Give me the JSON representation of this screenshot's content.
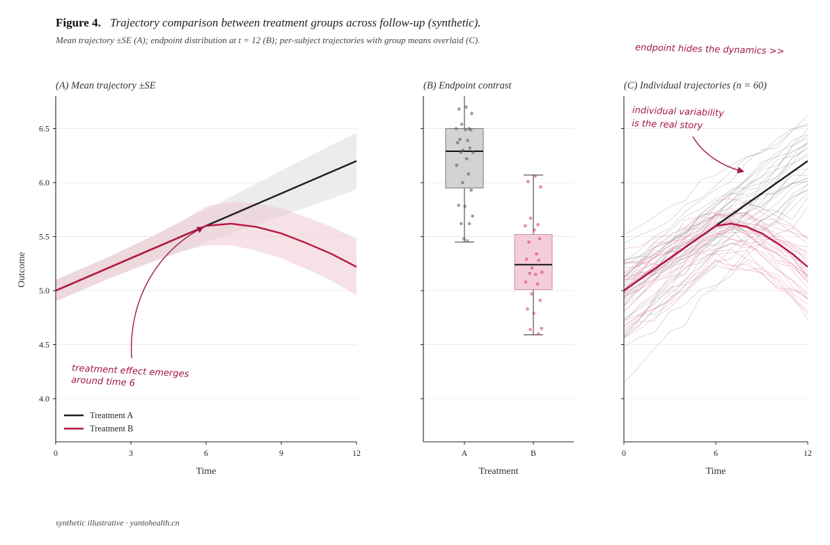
{
  "figure": {
    "label": "Figure 4.",
    "title": "Trajectory comparison between treatment groups across follow-up (synthetic).",
    "subtitle": "Mean trajectory ±SE (A); endpoint distribution at t = 12 (B); per-subject trajectories with group means overlaid (C).",
    "corner_note": "endpoint hides the dynamics  >>",
    "footer": "synthetic illustrative · yantohealth.cn"
  },
  "colors": {
    "a": "#1e1e1e",
    "b": "#b5173f",
    "a_band": "#e6e6e6",
    "b_band": "#efc9d4",
    "note": "#a3164a"
  },
  "chart_data": [
    {
      "panel": "A",
      "type": "line",
      "title": "(A)  Mean trajectory  ±SE",
      "xlabel": "Time",
      "ylabel": "Outcome",
      "xlim": [
        0,
        12
      ],
      "ylim": [
        3.6,
        6.8
      ],
      "xticks": [
        "0",
        "3",
        "6",
        "9",
        "12"
      ],
      "yticks": [
        "4.0",
        "4.5",
        "5.0",
        "5.5",
        "6.0",
        "6.5"
      ],
      "grid": "horizontal",
      "legend_position": "bottom-left",
      "series": [
        {
          "name": "Treatment A",
          "x": [
            0,
            1,
            2,
            3,
            4,
            5,
            6,
            7,
            8,
            9,
            10,
            11,
            12
          ],
          "y": [
            5.0,
            5.1,
            5.2,
            5.3,
            5.4,
            5.5,
            5.6,
            5.7,
            5.8,
            5.9,
            6.0,
            6.1,
            6.2
          ],
          "se": [
            0.1,
            0.1,
            0.1,
            0.11,
            0.12,
            0.14,
            0.15,
            0.17,
            0.19,
            0.21,
            0.23,
            0.25,
            0.26
          ]
        },
        {
          "name": "Treatment B",
          "x": [
            0,
            1,
            2,
            3,
            4,
            5,
            6,
            7,
            8,
            9,
            10,
            11,
            12
          ],
          "y": [
            5.0,
            5.1,
            5.2,
            5.3,
            5.4,
            5.5,
            5.6,
            5.62,
            5.59,
            5.53,
            5.44,
            5.34,
            5.22
          ],
          "se": [
            0.1,
            0.1,
            0.1,
            0.11,
            0.12,
            0.14,
            0.18,
            0.2,
            0.22,
            0.23,
            0.24,
            0.25,
            0.26
          ]
        }
      ],
      "annotation": "treatment effect emerges\naround time 6"
    },
    {
      "panel": "B",
      "type": "box",
      "title": "(B)  Endpoint contrast",
      "xlabel": "Treatment",
      "categories": [
        "A",
        "B"
      ],
      "ylim": [
        3.6,
        6.8
      ],
      "boxes": [
        {
          "name": "A",
          "q1": 5.95,
          "median": 6.29,
          "q3": 6.5,
          "whisker_low": 5.45,
          "whisker_high": 6.8,
          "points": [
            6.7,
            6.68,
            6.64,
            6.54,
            6.5,
            6.5,
            6.49,
            6.49,
            6.4,
            6.39,
            6.37,
            6.32,
            6.3,
            6.28,
            6.28,
            6.22,
            6.16,
            6.08,
            6.0,
            5.93,
            5.79,
            5.78,
            5.69,
            5.62,
            5.62,
            5.48,
            5.46
          ]
        },
        {
          "name": "B",
          "q1": 5.01,
          "median": 5.24,
          "q3": 5.52,
          "whisker_low": 4.59,
          "whisker_high": 6.07,
          "points": [
            6.06,
            6.01,
            5.96,
            5.67,
            5.61,
            5.6,
            5.56,
            5.48,
            5.45,
            5.34,
            5.29,
            5.28,
            5.21,
            5.17,
            5.16,
            5.15,
            5.08,
            5.06,
            4.97,
            4.91,
            4.83,
            4.79,
            4.65,
            4.64,
            4.6
          ]
        }
      ]
    },
    {
      "panel": "C",
      "type": "line",
      "title": "(C)  Individual trajectories  (n = 60)",
      "xlabel": "Time",
      "xlim": [
        0,
        12
      ],
      "ylim": [
        3.6,
        6.8
      ],
      "xticks": [
        "0",
        "6",
        "12"
      ],
      "annotation": "individual variability\nis the real story",
      "n_subjects": 60
    }
  ]
}
